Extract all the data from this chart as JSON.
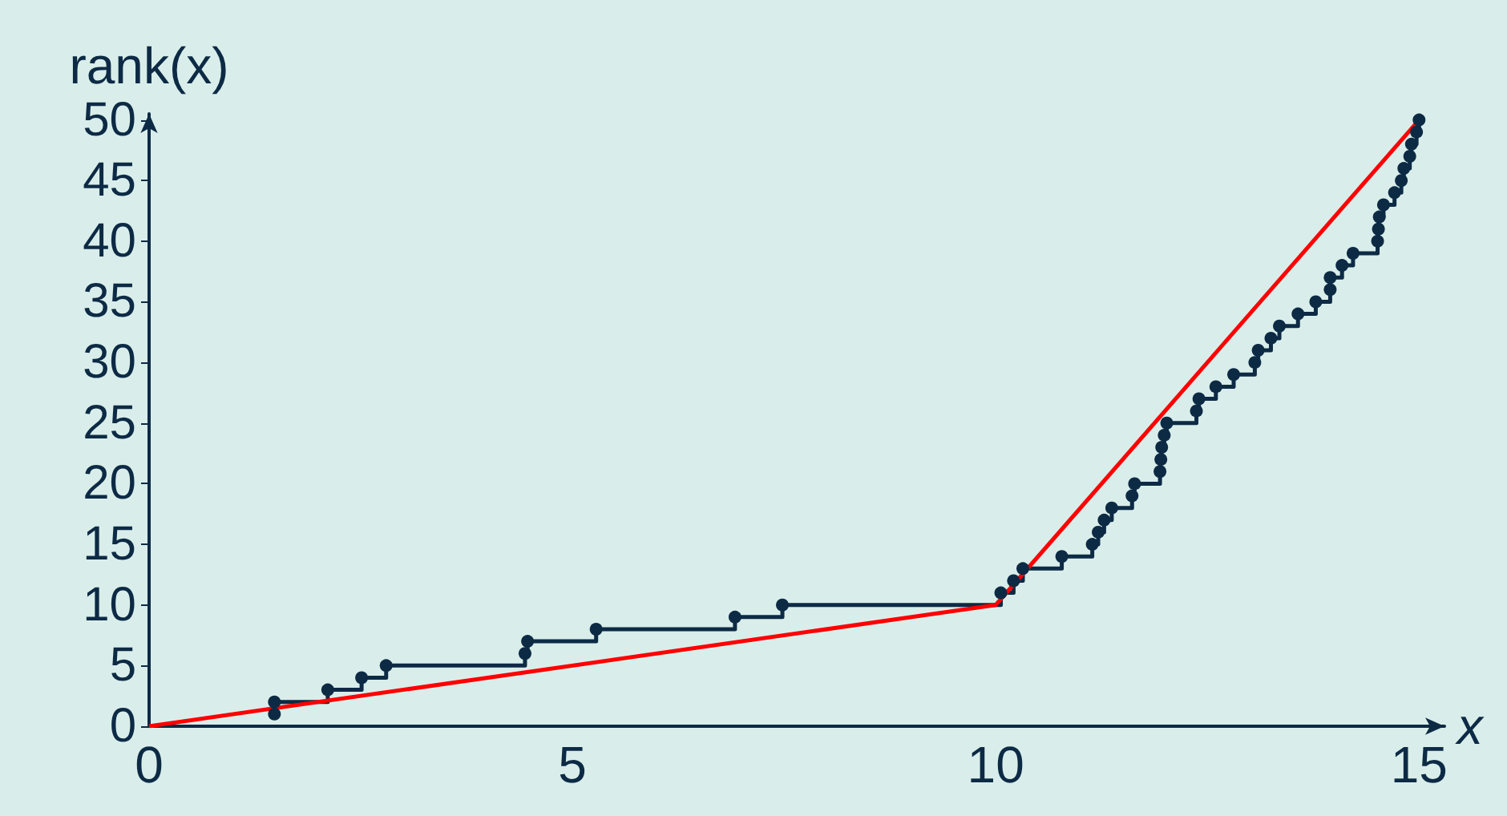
{
  "chart_data": {
    "type": "step",
    "xlabel": "x",
    "ylabel": "rank(x)",
    "xlim": [
      0,
      15.3
    ],
    "ylim": [
      0,
      50.5
    ],
    "xticks": [
      0,
      5,
      10,
      15
    ],
    "yticks": [
      0,
      5,
      10,
      15,
      20,
      25,
      30,
      35,
      40,
      45,
      50
    ],
    "grid": false,
    "series": [
      {
        "color": "#0d2a45",
        "marker": "circle",
        "x": [
          1.48,
          1.48,
          2.11,
          2.51,
          2.8,
          4.44,
          4.47,
          5.28,
          6.92,
          7.48,
          10.06,
          10.21,
          10.32,
          10.78,
          11.14,
          11.21,
          11.28,
          11.37,
          11.61,
          11.64,
          11.94,
          11.95,
          11.96,
          11.99,
          12.02,
          12.37,
          12.4,
          12.6,
          12.81,
          13.06,
          13.1,
          13.25,
          13.35,
          13.57,
          13.78,
          13.95,
          13.95,
          14.09,
          14.22,
          14.51,
          14.52,
          14.53,
          14.58,
          14.71,
          14.79,
          14.82,
          14.89,
          14.91,
          14.97,
          15.0
        ],
        "values": [
          1,
          2,
          3,
          4,
          5,
          6,
          7,
          8,
          9,
          10,
          11,
          12,
          13,
          14,
          15,
          16,
          17,
          18,
          19,
          20,
          21,
          22,
          23,
          24,
          25,
          26,
          27,
          28,
          29,
          30,
          31,
          32,
          33,
          34,
          35,
          36,
          37,
          38,
          39,
          40,
          41,
          42,
          43,
          44,
          45,
          46,
          47,
          48,
          49,
          50
        ]
      },
      {
        "type": "line",
        "color": "#ff0000",
        "marker": "none",
        "x": [
          0,
          10,
          15
        ],
        "values": [
          0,
          10,
          50
        ]
      }
    ]
  }
}
